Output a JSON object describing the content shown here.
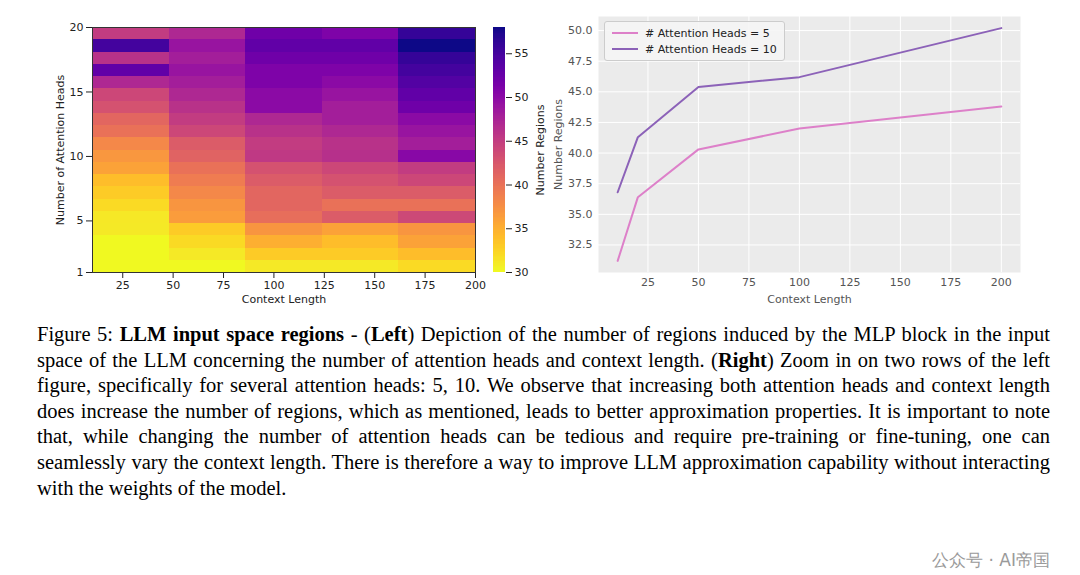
{
  "chart_data": [
    {
      "type": "heatmap",
      "x_label": "Context Length",
      "y_label": "Number of Attention Heads",
      "x_edges": [
        10,
        48,
        86,
        124,
        162,
        200
      ],
      "y_edges": [
        1,
        1.95,
        2.9,
        3.85,
        4.8,
        5.75,
        6.7,
        7.65,
        8.6,
        9.55,
        10.5,
        11.45,
        12.4,
        13.35,
        14.3,
        15.25,
        16.2,
        17.15,
        18.1,
        19.05,
        20
      ],
      "cells": [
        [
          30,
          30,
          31,
          31,
          32
        ],
        [
          30,
          31,
          33,
          33,
          34
        ],
        [
          30,
          32,
          35,
          34,
          36
        ],
        [
          31,
          33,
          37,
          36,
          37
        ],
        [
          31.2,
          36.4,
          40.3,
          42.0,
          43.8
        ],
        [
          32,
          37,
          41,
          40,
          40
        ],
        [
          33,
          38,
          41,
          42,
          42
        ],
        [
          34,
          39,
          42,
          43,
          44
        ],
        [
          36,
          40,
          43,
          44,
          45
        ],
        [
          36.8,
          41.3,
          45.4,
          46.2,
          50.2
        ],
        [
          38,
          42,
          45,
          46,
          48
        ],
        [
          40,
          44,
          46,
          47,
          49
        ],
        [
          41,
          45,
          47,
          48,
          50
        ],
        [
          43,
          46,
          50,
          48,
          52
        ],
        [
          44,
          47,
          50,
          49,
          53
        ],
        [
          47,
          48,
          51,
          50,
          54
        ],
        [
          53,
          49,
          51,
          51,
          55
        ],
        [
          46,
          48,
          52,
          52,
          56
        ],
        [
          55,
          49,
          53,
          53,
          58
        ],
        [
          45,
          47,
          52,
          51,
          56
        ]
      ],
      "xlim": [
        10,
        200
      ],
      "xticks": [
        25,
        50,
        75,
        100,
        125,
        150,
        175,
        200
      ],
      "ylim": [
        1,
        20
      ],
      "yticks": [
        1,
        5,
        10,
        15,
        20
      ],
      "colorbar": {
        "label": "Number Regions",
        "range": [
          30,
          58
        ],
        "ticks": [
          30,
          35,
          40,
          45,
          50,
          55
        ]
      }
    },
    {
      "type": "line",
      "x_label": "Context Length",
      "y_label": "Number Regions",
      "x": [
        10,
        20,
        50,
        100,
        200
      ],
      "series": [
        {
          "name": "# Attention Heads = 5",
          "color": "#dd80c9",
          "values": [
            31.2,
            36.4,
            40.3,
            42.0,
            43.8
          ]
        },
        {
          "name": "# Attention Heads = 10",
          "color": "#8c62b8",
          "values": [
            36.8,
            41.3,
            45.4,
            46.2,
            50.2
          ]
        }
      ],
      "xlim": [
        0.5,
        209.5
      ],
      "xticks": [
        25,
        50,
        75,
        100,
        125,
        150,
        175,
        200
      ],
      "ylim": [
        30.25,
        51.15
      ],
      "yticks": [
        32.5,
        {
          "value": 35,
          "label": "35.0"
        },
        37.5,
        {
          "value": 40,
          "label": "40.0"
        },
        42.5,
        {
          "value": 45,
          "label": "45.0"
        },
        47.5,
        {
          "value": 50,
          "label": "50.0"
        }
      ],
      "grid": true,
      "legend": "upper left"
    }
  ],
  "caption": [
    {
      "text": "Figure 5: "
    },
    {
      "text": "LLM input space regions",
      "bold": true
    },
    {
      "text": " - ("
    },
    {
      "text": "Left",
      "bold": true
    },
    {
      "text": ") Depiction of the number of regions induced by the MLP block in the input space of the LLM concerning the number of attention heads and context length. ("
    },
    {
      "text": "Right",
      "bold": true
    },
    {
      "text": ") Zoom in on two rows of the left figure, specifically for several attention heads: 5, 10. We observe that increasing both attention heads and context length does increase the number of regions, which as mentioned, leads to better approximation properties. It is important to note that, while changing the number of attention heads can be tedious and require pre-training or fine-tuning, one can seamlessly vary the context length. There is therefore a way to improve LLM approximation capability without interacting with the weights of the model."
    }
  ],
  "watermark": "公众号 · AI帝国"
}
